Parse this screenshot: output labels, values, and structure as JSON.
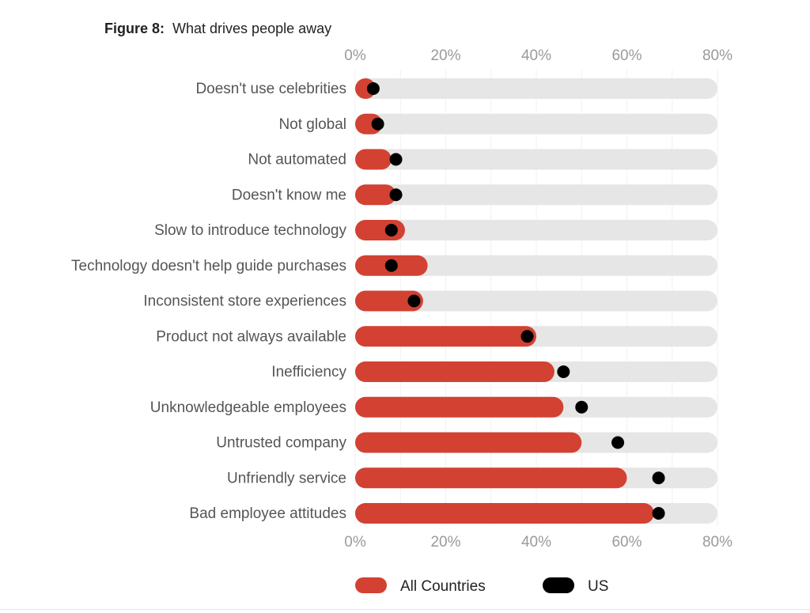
{
  "figure": {
    "prefix": "Figure 8:",
    "title": "What drives people away"
  },
  "chart_data": {
    "type": "bar",
    "orientation": "horizontal",
    "title": "Figure 8: What drives people away",
    "xlabel": "",
    "ylabel": "",
    "xlim": [
      0,
      80
    ],
    "ticks": [
      0,
      20,
      40,
      60,
      80
    ],
    "tick_labels": [
      "0%",
      "20%",
      "40%",
      "60%",
      "80%"
    ],
    "grid": true,
    "legend_position": "bottom",
    "categories": [
      "Doesn't use celebrities",
      "Not global",
      "Not automated",
      "Doesn't know me",
      "Slow to introduce technology",
      "Technology doesn't help guide purchases",
      "Inconsistent store experiences",
      "Product not always available",
      "Inefficiency",
      "Unknowledgeable employees",
      "Untrusted company",
      "Unfriendly service",
      "Bad employee attitudes"
    ],
    "series": [
      {
        "name": "All Countries",
        "kind": "bar",
        "color": "#d24132",
        "values": [
          4,
          6,
          8,
          9,
          11,
          16,
          15,
          40,
          44,
          46,
          50,
          60,
          66
        ]
      },
      {
        "name": "US",
        "kind": "dot",
        "color": "#000000",
        "values": [
          4,
          5,
          9,
          9,
          8,
          8,
          13,
          38,
          46,
          50,
          58,
          67,
          67
        ]
      }
    ],
    "track_color": "#e6e6e6"
  }
}
